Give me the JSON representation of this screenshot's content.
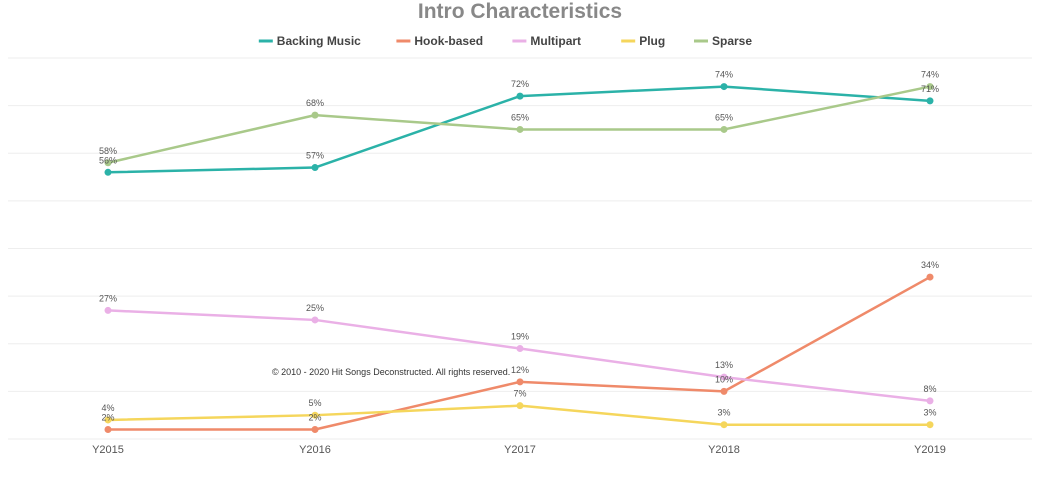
{
  "chart_data": {
    "type": "line",
    "title": "Intro Characteristics",
    "categories": [
      "Y2015",
      "Y2016",
      "Y2017",
      "Y2018",
      "Y2019"
    ],
    "ylim": [
      0,
      80
    ],
    "grid": true,
    "legend_position": "top-center",
    "series": [
      {
        "name": "Backing Music",
        "color": "#2bb2a8",
        "values": [
          56,
          57,
          72,
          74,
          71
        ]
      },
      {
        "name": "Hook-based",
        "color": "#ef8a6a",
        "values": [
          2,
          2,
          12,
          10,
          34
        ]
      },
      {
        "name": "Multipart",
        "color": "#eab0e6",
        "values": [
          27,
          25,
          19,
          13,
          8
        ]
      },
      {
        "name": "Plug",
        "color": "#f5d65c",
        "values": [
          4,
          5,
          7,
          3,
          3
        ]
      },
      {
        "name": "Sparse",
        "color": "#a9c98a",
        "values": [
          58,
          68,
          65,
          65,
          74
        ]
      }
    ],
    "value_suffix": "%"
  },
  "watermark": "© 2010 - 2020 Hit Songs Deconstructed. All rights reserved."
}
